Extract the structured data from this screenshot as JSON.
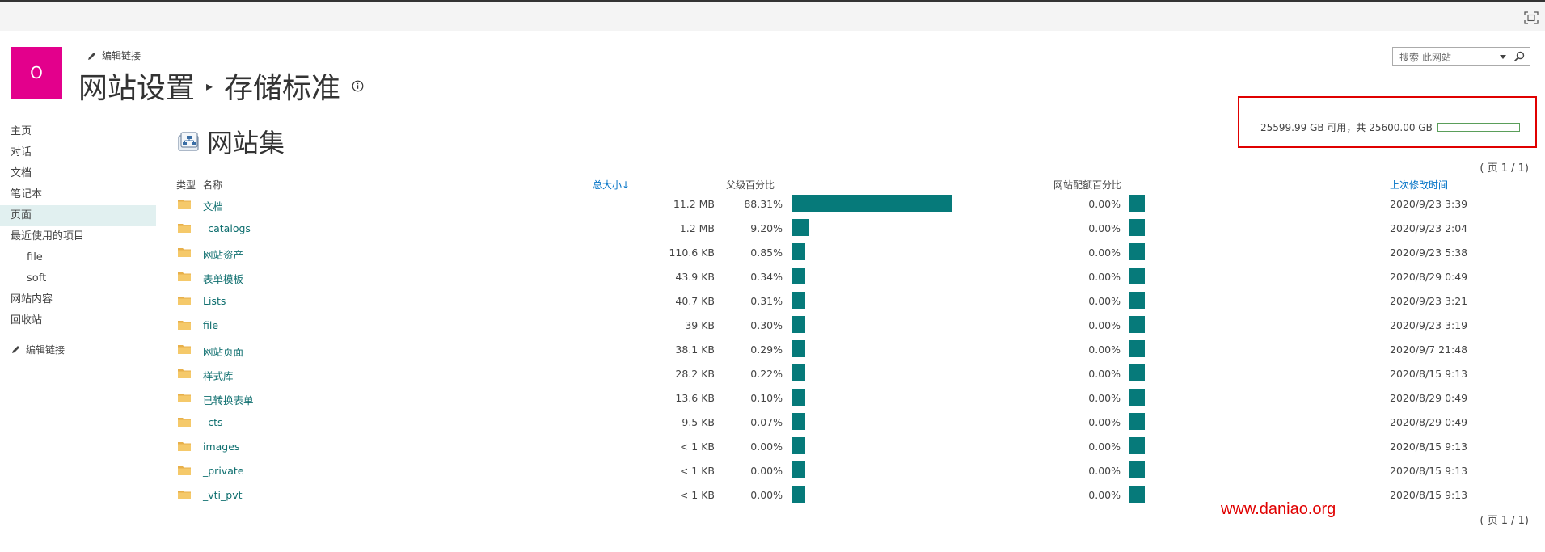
{
  "header": {
    "logo_letter": "O",
    "edit_links_label": "编辑链接",
    "breadcrumb_parent": "网站设置",
    "breadcrumb_current": "存储标准",
    "search_placeholder": "搜索 此网站"
  },
  "nav": {
    "items": [
      {
        "label": "主页",
        "selected": false,
        "sub": false
      },
      {
        "label": "对话",
        "selected": false,
        "sub": false
      },
      {
        "label": "文档",
        "selected": false,
        "sub": false
      },
      {
        "label": "笔记本",
        "selected": false,
        "sub": false
      },
      {
        "label": "页面",
        "selected": true,
        "sub": false
      },
      {
        "label": "最近使用的项目",
        "selected": false,
        "sub": false
      },
      {
        "label": "file",
        "selected": false,
        "sub": true
      },
      {
        "label": "soft",
        "selected": false,
        "sub": true
      },
      {
        "label": "网站内容",
        "selected": false,
        "sub": false
      },
      {
        "label": "回收站",
        "selected": false,
        "sub": false
      }
    ],
    "edit_links_label": "编辑链接"
  },
  "section": {
    "title": "网站集"
  },
  "storage": {
    "text": "25599.99 GB 可用，共 25600.00 GB",
    "used_fraction": 0.0,
    "bar_color": "#5a9e5a",
    "highlight_color": "#e00000"
  },
  "pager": {
    "top": "( 页 1 / 1)",
    "bottom": "( 页 1 / 1)"
  },
  "table": {
    "headers": {
      "type": "类型",
      "name": "名称",
      "size": "总大小↓",
      "parent_pct": "父级百分比",
      "quota_pct": "网站配额百分比",
      "modified": "上次修改时间"
    },
    "bar_color": "#067a7a",
    "rows": [
      {
        "name": "文档",
        "size": "11.2 MB",
        "pct": "88.31%",
        "pct_value": 88.31,
        "quota_pct": "0.00%",
        "modified": "2020/9/23 3:39"
      },
      {
        "name": "_catalogs",
        "size": "1.2 MB",
        "pct": "9.20%",
        "pct_value": 9.2,
        "quota_pct": "0.00%",
        "modified": "2020/9/23 2:04"
      },
      {
        "name": "网站资产",
        "size": "110.6 KB",
        "pct": "0.85%",
        "pct_value": 0.85,
        "quota_pct": "0.00%",
        "modified": "2020/9/23 5:38"
      },
      {
        "name": "表单模板",
        "size": "43.9 KB",
        "pct": "0.34%",
        "pct_value": 0.34,
        "quota_pct": "0.00%",
        "modified": "2020/8/29 0:49"
      },
      {
        "name": "Lists",
        "size": "40.7 KB",
        "pct": "0.31%",
        "pct_value": 0.31,
        "quota_pct": "0.00%",
        "modified": "2020/9/23 3:21"
      },
      {
        "name": "file",
        "size": "39 KB",
        "pct": "0.30%",
        "pct_value": 0.3,
        "quota_pct": "0.00%",
        "modified": "2020/9/23 3:19"
      },
      {
        "name": "网站页面",
        "size": "38.1 KB",
        "pct": "0.29%",
        "pct_value": 0.29,
        "quota_pct": "0.00%",
        "modified": "2020/9/7 21:48"
      },
      {
        "name": "样式库",
        "size": "28.2 KB",
        "pct": "0.22%",
        "pct_value": 0.22,
        "quota_pct": "0.00%",
        "modified": "2020/8/15 9:13"
      },
      {
        "name": "已转换表单",
        "size": "13.6 KB",
        "pct": "0.10%",
        "pct_value": 0.1,
        "quota_pct": "0.00%",
        "modified": "2020/8/29 0:49"
      },
      {
        "name": "_cts",
        "size": "9.5 KB",
        "pct": "0.07%",
        "pct_value": 0.07,
        "quota_pct": "0.00%",
        "modified": "2020/8/29 0:49"
      },
      {
        "name": "images",
        "size": "< 1 KB",
        "pct": "0.00%",
        "pct_value": 0.0,
        "quota_pct": "0.00%",
        "modified": "2020/8/15 9:13"
      },
      {
        "name": "_private",
        "size": "< 1 KB",
        "pct": "0.00%",
        "pct_value": 0.0,
        "quota_pct": "0.00%",
        "modified": "2020/8/15 9:13"
      },
      {
        "name": "_vti_pvt",
        "size": "< 1 KB",
        "pct": "0.00%",
        "pct_value": 0.0,
        "quota_pct": "0.00%",
        "modified": "2020/8/15 9:13"
      }
    ]
  },
  "watermark": "www.daniao.org",
  "icons": {
    "focus": "focus-mode-icon",
    "pencil": "pencil-icon",
    "info": "info-icon",
    "search": "search-icon",
    "dropdown": "dropdown-arrow-icon",
    "site_collection": "site-collection-icon",
    "folder": "folder-icon"
  }
}
